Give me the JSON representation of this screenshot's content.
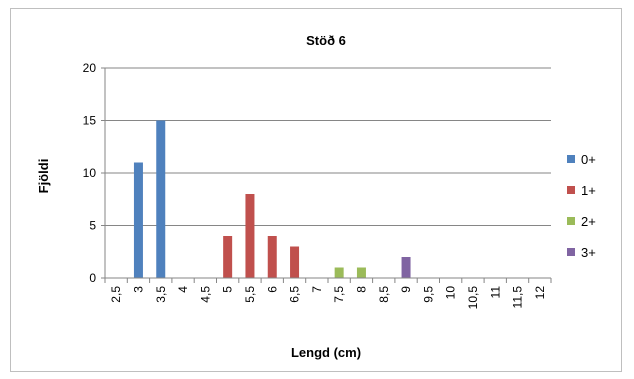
{
  "chart_data": {
    "type": "bar",
    "title": "Stöð 6",
    "xlabel": "Lengd (cm)",
    "ylabel": "Fjöldi",
    "ylim": [
      0,
      20
    ],
    "yticks": [
      "0",
      "5",
      "10",
      "15",
      "20"
    ],
    "grid": true,
    "legend_position": "right",
    "categories": [
      "2,5",
      "3",
      "3,5",
      "4",
      "4,5",
      "5",
      "5,5",
      "6",
      "6,5",
      "7",
      "7,5",
      "8",
      "8,5",
      "9",
      "9,5",
      "10",
      "10,5",
      "11",
      "11,5",
      "12"
    ],
    "series": [
      {
        "name": "0+",
        "color": "#4f81bd",
        "values": [
          0,
          11,
          15,
          0,
          0,
          0,
          0,
          0,
          0,
          0,
          0,
          0,
          0,
          0,
          0,
          0,
          0,
          0,
          0,
          0
        ]
      },
      {
        "name": "1+",
        "color": "#c0504d",
        "values": [
          0,
          0,
          0,
          0,
          0,
          4,
          8,
          4,
          3,
          0,
          0,
          0,
          0,
          0,
          0,
          0,
          0,
          0,
          0,
          0
        ]
      },
      {
        "name": "2+",
        "color": "#9bbb59",
        "values": [
          0,
          0,
          0,
          0,
          0,
          0,
          0,
          0,
          0,
          0,
          1,
          1,
          0,
          0,
          0,
          0,
          0,
          0,
          0,
          0
        ]
      },
      {
        "name": "3+",
        "color": "#8064a2",
        "values": [
          0,
          0,
          0,
          0,
          0,
          0,
          0,
          0,
          0,
          0,
          0,
          0,
          0,
          2,
          0,
          0,
          0,
          0,
          0,
          0
        ]
      }
    ]
  }
}
